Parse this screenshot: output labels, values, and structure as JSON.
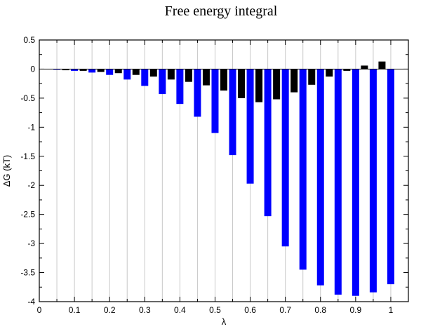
{
  "chart_data": {
    "type": "bar",
    "title": "Free energy integral",
    "xlabel": "λ",
    "ylabel": "ΔG (kT)",
    "xlim": [
      0,
      1.05
    ],
    "ylim": [
      -4,
      0.5
    ],
    "x_ticks": [
      0,
      0.1,
      0.2,
      0.3,
      0.4,
      0.5,
      0.6,
      0.7,
      0.8,
      0.9,
      1
    ],
    "x_tick_labels": [
      "0",
      "0.1",
      "0.2",
      "0.3",
      "0.4",
      "0.5",
      "0.6",
      "0.7",
      "0.8",
      "0.9",
      "1"
    ],
    "y_ticks": [
      0.5,
      0,
      -0.5,
      -1,
      -1.5,
      -2,
      -2.5,
      -3,
      -3.5,
      -4
    ],
    "y_tick_labels": [
      "0.5",
      "0",
      "-0.5",
      "-1",
      "-1.5",
      "-2",
      "-2.5",
      "-3",
      "-3.5",
      "-4"
    ],
    "grid": "vertical",
    "series": [
      {
        "color": "#000000",
        "x": [
          0.075,
          0.125,
          0.175,
          0.225,
          0.275,
          0.325,
          0.375,
          0.425,
          0.475,
          0.525,
          0.575,
          0.625,
          0.675,
          0.725,
          0.775,
          0.825,
          0.875,
          0.925,
          0.975
        ],
        "values": [
          -0.02,
          -0.03,
          -0.05,
          -0.07,
          -0.1,
          -0.13,
          -0.18,
          -0.22,
          -0.28,
          -0.37,
          -0.5,
          -0.57,
          -0.52,
          -0.4,
          -0.27,
          -0.13,
          -0.03,
          0.06,
          0.13
        ]
      },
      {
        "color": "#0000ff",
        "x": [
          0.05,
          0.1,
          0.15,
          0.2,
          0.25,
          0.3,
          0.35,
          0.4,
          0.45,
          0.5,
          0.55,
          0.6,
          0.65,
          0.7,
          0.75,
          0.8,
          0.85,
          0.9,
          0.95,
          1.0
        ],
        "values": [
          -0.01,
          -0.03,
          -0.06,
          -0.1,
          -0.18,
          -0.29,
          -0.43,
          -0.6,
          -0.82,
          -1.1,
          -1.48,
          -1.97,
          -2.53,
          -3.05,
          -3.45,
          -3.72,
          -3.88,
          -3.9,
          -3.84,
          -3.7
        ]
      }
    ]
  }
}
